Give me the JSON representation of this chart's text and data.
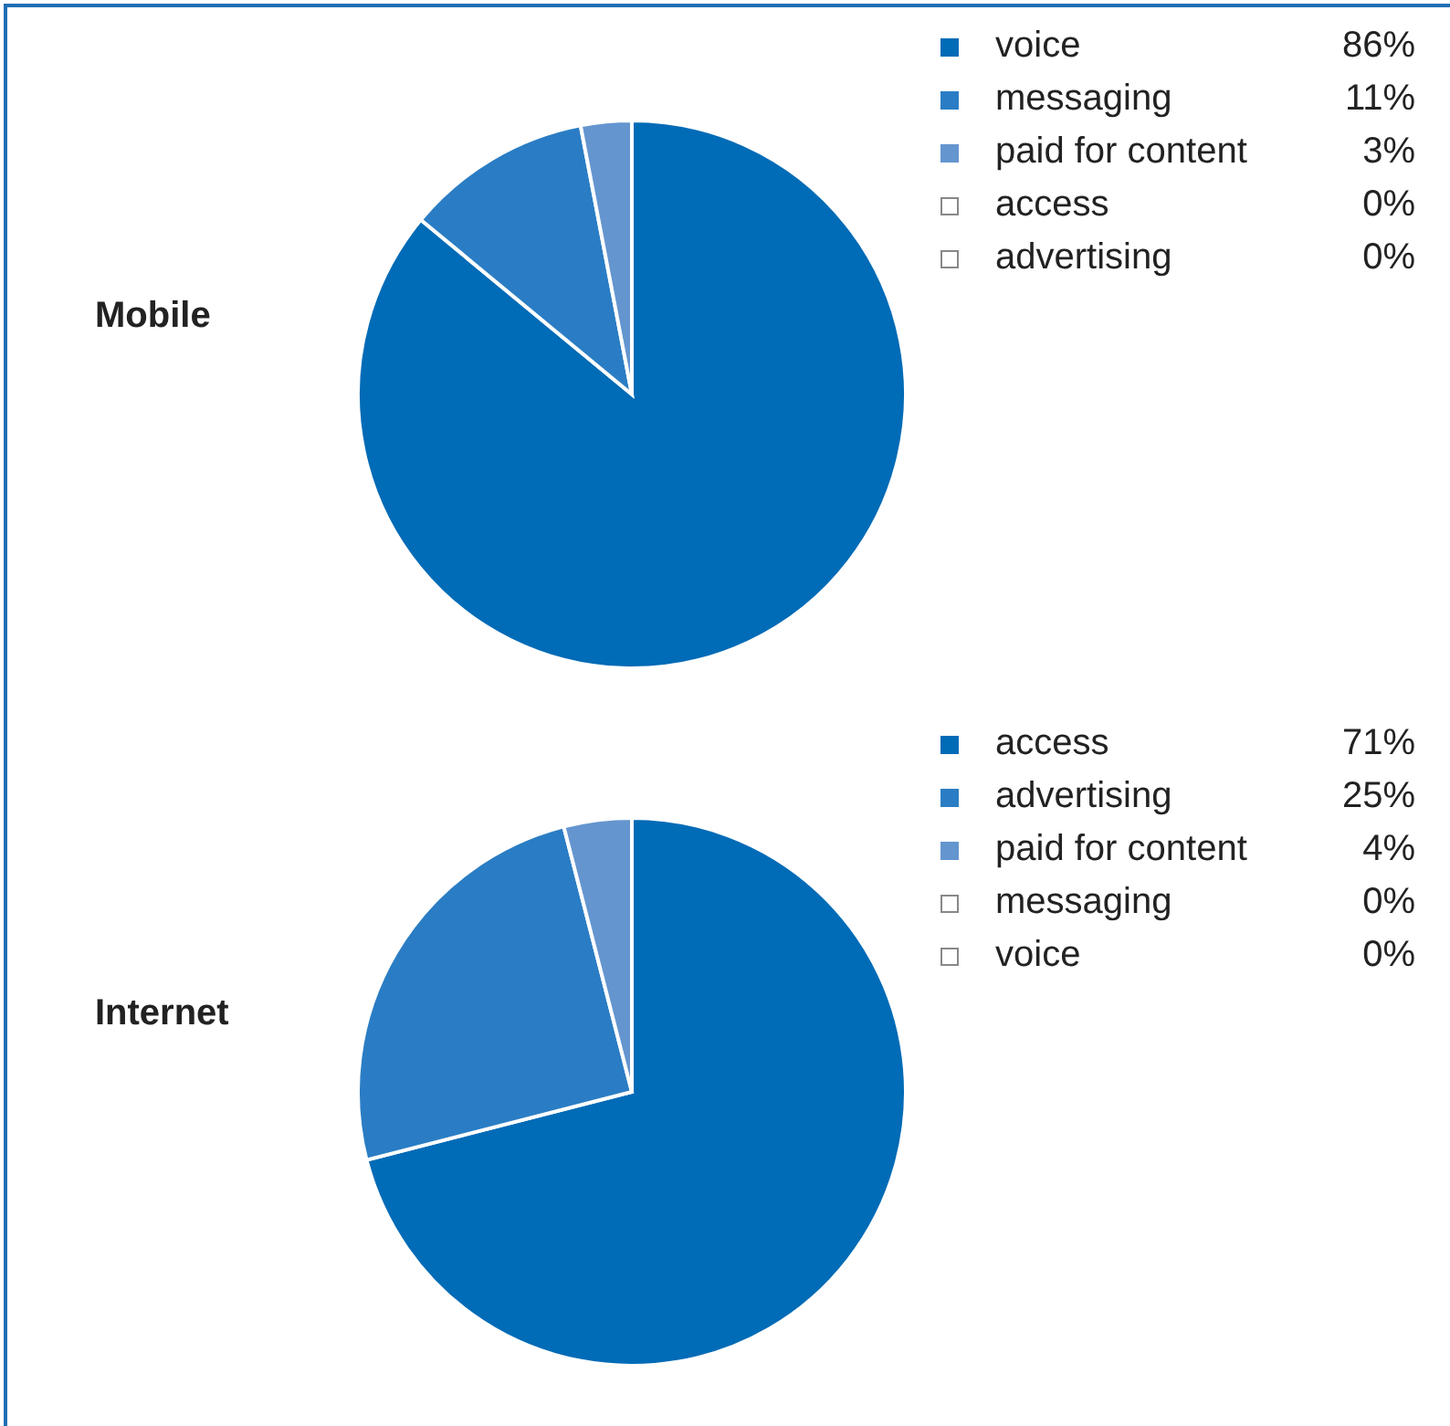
{
  "chart_data": [
    {
      "type": "pie",
      "title": "Mobile",
      "categories": [
        "voice",
        "messaging",
        "paid for content",
        "access",
        "advertising"
      ],
      "values": [
        86,
        11,
        3,
        0,
        0
      ],
      "value_labels": [
        "86%",
        "11%",
        "3%",
        "0%",
        "0%"
      ],
      "colors": [
        "#006bb6",
        "#2a7dc4",
        "#6495cf",
        "#ffffff",
        "#ffffff"
      ],
      "legend": "right"
    },
    {
      "type": "pie",
      "title": "Internet",
      "categories": [
        "access",
        "advertising",
        "paid for content",
        "messaging",
        "voice"
      ],
      "values": [
        71,
        25,
        4,
        0,
        0
      ],
      "value_labels": [
        "71%",
        "25%",
        "4%",
        "0%",
        "0%"
      ],
      "colors": [
        "#006bb6",
        "#2a7dc4",
        "#6495cf",
        "#ffffff",
        "#ffffff"
      ],
      "legend": "right"
    }
  ]
}
